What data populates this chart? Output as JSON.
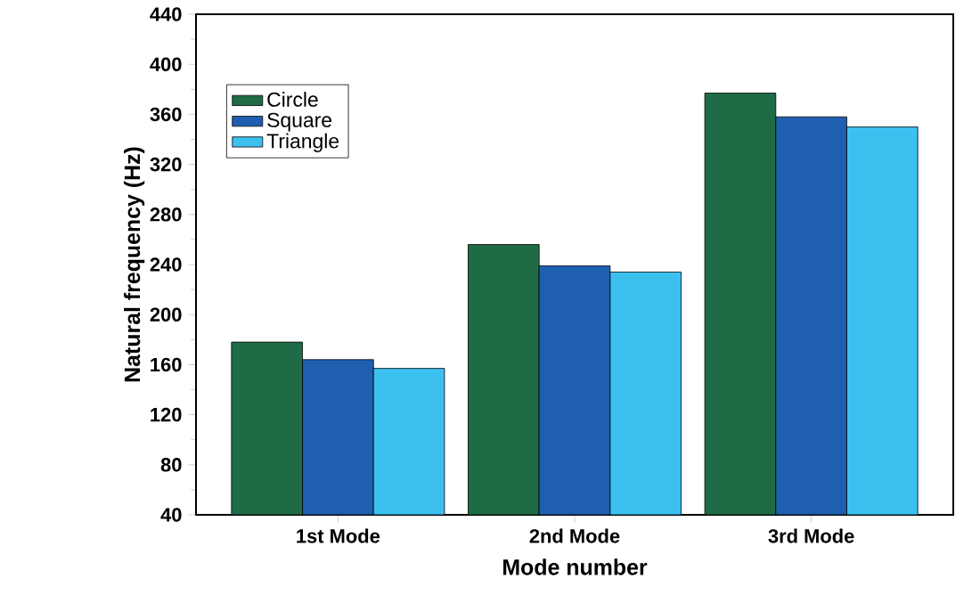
{
  "chart_data": {
    "type": "bar",
    "xlabel": "Mode number",
    "ylabel": "Natural frequency (Hz)",
    "categories": [
      "1st Mode",
      "2nd Mode",
      "3rd Mode"
    ],
    "series": [
      {
        "name": "Circle",
        "color": "#1e6b45",
        "values": [
          178,
          256,
          377
        ]
      },
      {
        "name": "Square",
        "color": "#1f5fb0",
        "values": [
          164,
          239,
          358
        ]
      },
      {
        "name": "Triangle",
        "color": "#3cc0f0",
        "values": [
          157,
          234,
          350
        ]
      }
    ],
    "ylim": [
      40,
      440
    ],
    "yticks": [
      40,
      80,
      120,
      160,
      200,
      240,
      280,
      320,
      360,
      400,
      440
    ],
    "grid": false,
    "legend": "top left"
  }
}
